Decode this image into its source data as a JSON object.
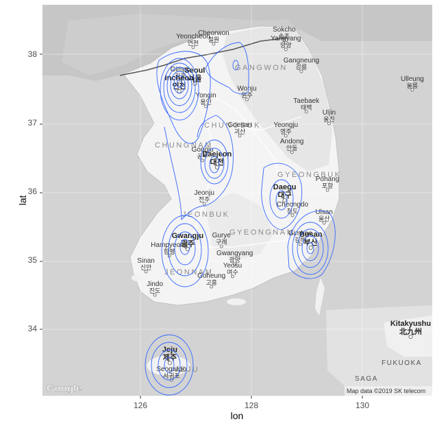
{
  "x_axis_title": "lon",
  "y_axis_title": "lat",
  "attribution": "Map data ©2019 SK telecom",
  "google_logo": "Google",
  "colors": {
    "contour": "#3366ff",
    "panel_bg": "#e0e0e0",
    "land": "#ffffff",
    "sea": "#cfcfcf"
  },
  "regions": [
    {
      "id": "gangwon",
      "text": "GANGWON"
    },
    {
      "id": "chungbuk",
      "text": "CHUNGBUK"
    },
    {
      "id": "chungnam",
      "text": "CHUNGNAM"
    },
    {
      "id": "gyeongbuk",
      "text": "GYEONGBUK"
    },
    {
      "id": "jeonbuk",
      "text": "JEONBUK"
    },
    {
      "id": "gyeongnam",
      "text": "GYEONGNAM"
    },
    {
      "id": "jeonnam",
      "text": "JEONNAM"
    },
    {
      "id": "jeju",
      "text": "JEJU"
    },
    {
      "id": "fukuoka",
      "text": "FUKUOKA"
    },
    {
      "id": "saga",
      "text": "SAGA"
    }
  ],
  "cities": [
    {
      "id": "yeoncheon",
      "en": "Yeoncheon",
      "ko": "연천",
      "lon": 126.95,
      "lat": 38.1
    },
    {
      "id": "cheorwon",
      "en": "Cheorwon",
      "ko": "철원",
      "lon": 127.32,
      "lat": 38.15
    },
    {
      "id": "sokcho",
      "en": "Sokcho",
      "ko": "속초",
      "lon": 128.59,
      "lat": 38.2
    },
    {
      "id": "yangyang",
      "en": "Yangyang",
      "ko": "양양",
      "lon": 128.62,
      "lat": 38.07
    },
    {
      "id": "gimpo",
      "en": "Gimpo",
      "ko": "김포",
      "lon": 126.72,
      "lat": 37.62
    },
    {
      "id": "seoul",
      "en": "Seoul",
      "ko": "서울",
      "lon": 126.98,
      "lat": 37.57,
      "big": true
    },
    {
      "id": "gangneung",
      "en": "Gangneung",
      "ko": "강릉",
      "lon": 128.9,
      "lat": 37.75
    },
    {
      "id": "ulleung",
      "en": "Ulleung",
      "ko": "울릉",
      "lon": 130.9,
      "lat": 37.48
    },
    {
      "id": "incheon",
      "en": "Incheon",
      "ko": "인천",
      "lon": 126.7,
      "lat": 37.46,
      "big": true
    },
    {
      "id": "yongin",
      "en": "Yongin",
      "ko": "용인",
      "lon": 127.18,
      "lat": 37.24
    },
    {
      "id": "wonju",
      "en": "Wonju",
      "ko": "원주",
      "lon": 127.92,
      "lat": 37.34
    },
    {
      "id": "taebaek",
      "en": "Taebaek",
      "ko": "태백",
      "lon": 128.99,
      "lat": 37.16
    },
    {
      "id": "yeongju",
      "en": "Yeongju",
      "ko": "영주",
      "lon": 128.62,
      "lat": 36.81
    },
    {
      "id": "uljin",
      "en": "Uljin",
      "ko": "울진",
      "lon": 129.4,
      "lat": 36.99
    },
    {
      "id": "goesan",
      "en": "Goesan",
      "ko": "괴산",
      "lon": 127.79,
      "lat": 36.81
    },
    {
      "id": "gongju",
      "en": "Gongju",
      "ko": "공주",
      "lon": 127.12,
      "lat": 36.45
    },
    {
      "id": "daejeon",
      "en": "Daejeon",
      "ko": "대전",
      "lon": 127.38,
      "lat": 36.35,
      "big": true
    },
    {
      "id": "andong",
      "en": "Andong",
      "ko": "안동",
      "lon": 128.73,
      "lat": 36.57
    },
    {
      "id": "jeonju",
      "en": "Jeonju",
      "ko": "전주",
      "lon": 127.15,
      "lat": 35.82
    },
    {
      "id": "daegu",
      "en": "Daegu",
      "ko": "대구",
      "lon": 128.6,
      "lat": 35.87,
      "big": true
    },
    {
      "id": "pohang",
      "en": "Pohang",
      "ko": "포항",
      "lon": 129.37,
      "lat": 36.02
    },
    {
      "id": "cheongdo",
      "en": "Cheongdo",
      "ko": "청도",
      "lon": 128.74,
      "lat": 35.65
    },
    {
      "id": "ulsan",
      "en": "Ulsan",
      "ko": "울산",
      "lon": 129.31,
      "lat": 35.54
    },
    {
      "id": "gwangju",
      "en": "Gwangju",
      "ko": "광주",
      "lon": 126.85,
      "lat": 35.16,
      "big": true
    },
    {
      "id": "gurye",
      "en": "Gurye",
      "ko": "구례",
      "lon": 127.46,
      "lat": 35.2
    },
    {
      "id": "gimhae",
      "en": "Gimhae",
      "ko": "김해",
      "lon": 128.88,
      "lat": 35.23
    },
    {
      "id": "hampyeong",
      "en": "Hampyeong",
      "ko": "함평",
      "lon": 126.52,
      "lat": 35.06
    },
    {
      "id": "gwangyang",
      "en": "Gwangyang",
      "ko": "광양",
      "lon": 127.7,
      "lat": 34.94
    },
    {
      "id": "busan",
      "en": "Busan",
      "ko": "부산",
      "lon": 129.07,
      "lat": 35.18,
      "big": true
    },
    {
      "id": "sinan",
      "en": "Sinan",
      "ko": "신안",
      "lon": 126.1,
      "lat": 34.83
    },
    {
      "id": "jindo",
      "en": "Jindo",
      "ko": "진도",
      "lon": 126.26,
      "lat": 34.49
    },
    {
      "id": "goheung",
      "en": "Goheung",
      "ko": "고흥",
      "lon": 127.28,
      "lat": 34.61
    },
    {
      "id": "yeosu",
      "en": "Yeosu",
      "ko": "여수",
      "lon": 127.66,
      "lat": 34.76
    },
    {
      "id": "jeju",
      "en": "Jeju",
      "ko": "제주",
      "lon": 126.53,
      "lat": 33.5,
      "big": true
    },
    {
      "id": "seogwipo",
      "en": "Seogwipo",
      "ko": "서귀포",
      "lon": 126.56,
      "lat": 33.25
    },
    {
      "id": "kitakyushu",
      "en": "Kitakyushu",
      "ko": "北九州",
      "lon": 130.87,
      "lat": 33.88,
      "big": true
    }
  ],
  "chart_data": {
    "type": "contour",
    "x": {
      "label": "lon",
      "range": [
        124.2,
        131.3
      ],
      "ticks": [
        126,
        128,
        130
      ]
    },
    "y": {
      "label": "lat",
      "range": [
        33.0,
        38.55
      ],
      "ticks": [
        34,
        35,
        36,
        37,
        38
      ]
    },
    "grid": true,
    "legend": "none",
    "density_centers": [
      {
        "name": "Seoul/Incheon",
        "lon": 126.75,
        "lat": 37.53,
        "levels": 7
      },
      {
        "name": "Daejeon",
        "lon": 127.35,
        "lat": 36.35,
        "levels": 3
      },
      {
        "name": "Gwangju",
        "lon": 126.9,
        "lat": 35.15,
        "levels": 4
      },
      {
        "name": "Daegu",
        "lon": 128.6,
        "lat": 35.9,
        "levels": 3
      },
      {
        "name": "Busan",
        "lon": 129.05,
        "lat": 35.18,
        "levels": 5
      },
      {
        "name": "Jeju",
        "lon": 126.5,
        "lat": 33.45,
        "levels": 4
      },
      {
        "name": "Gangwon",
        "lon": 127.75,
        "lat": 37.87,
        "levels": 2
      }
    ]
  }
}
